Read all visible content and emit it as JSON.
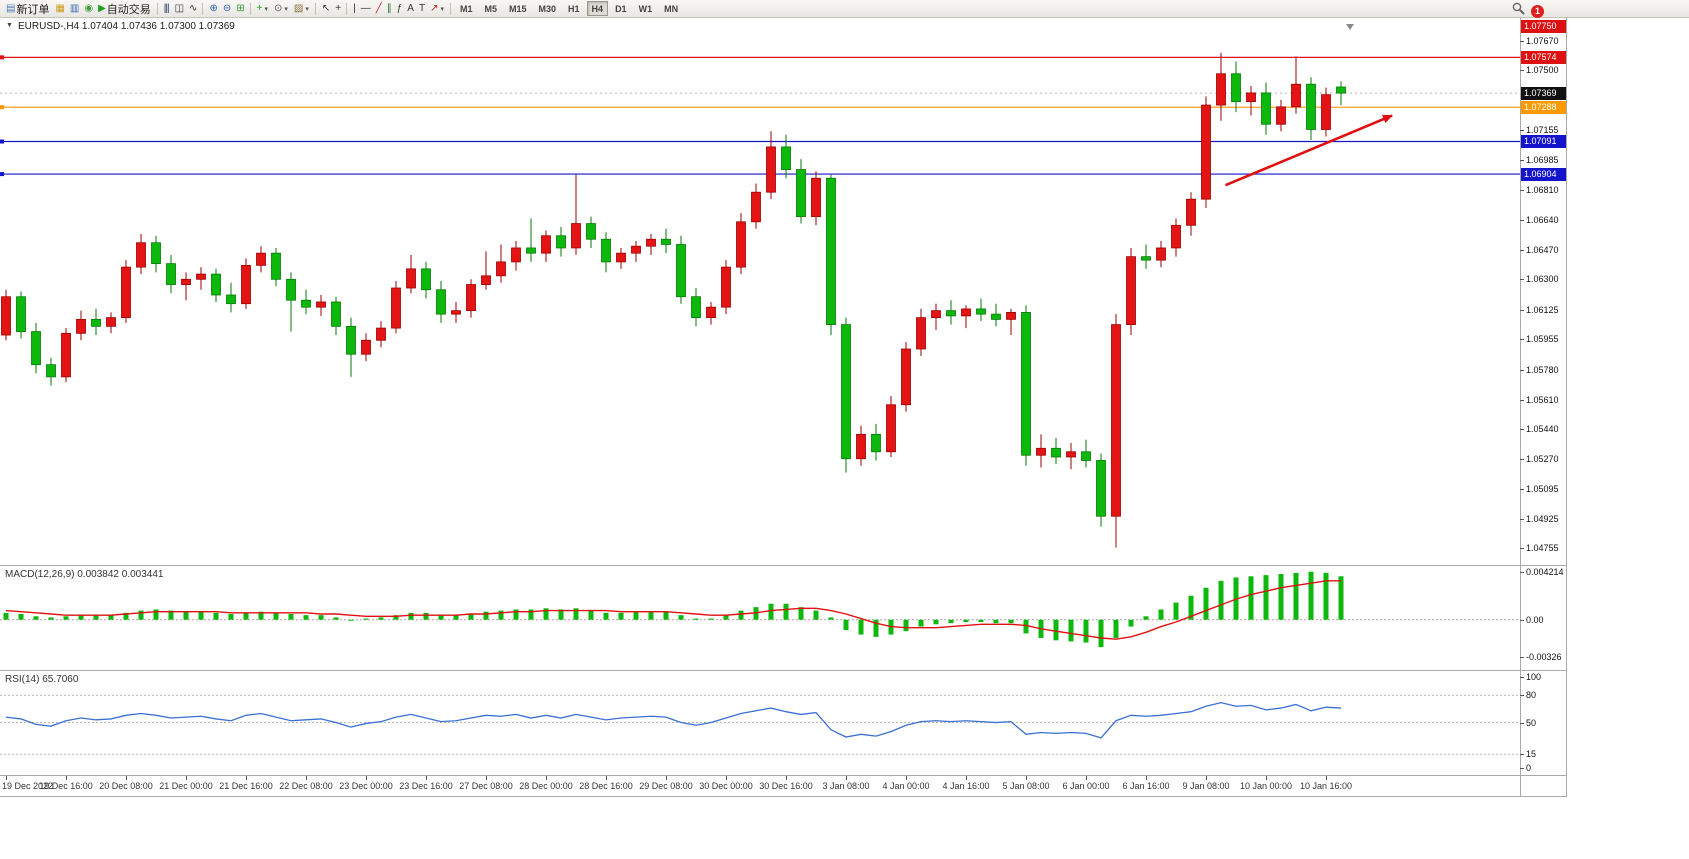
{
  "toolbar": {
    "notification_count": "1",
    "active_timeframe": "H4",
    "timeframes": [
      "M1",
      "M5",
      "M15",
      "M30",
      "H1",
      "H4",
      "D1",
      "W1",
      "MN"
    ],
    "icons": [
      {
        "name": "new-order-button",
        "glyph": "▤",
        "color": "#4a7ab5",
        "label": "新订单"
      },
      {
        "name": "new-chart-button",
        "glyph": "▦",
        "color": "#c99a1a"
      },
      {
        "name": "market-watch-button",
        "glyph": "▥",
        "color": "#2f66b3"
      },
      {
        "name": "navigator-button",
        "glyph": "◉",
        "color": "#3f9e3f"
      },
      {
        "name": "autotrading-button",
        "glyph": "▶",
        "color": "#18a018",
        "label": "自动交易"
      },
      {
        "name": "separator"
      },
      {
        "name": "bar-chart-button",
        "glyph": "|||",
        "color": "#223a6b"
      },
      {
        "name": "candlestick-chart-button",
        "glyph": "◫",
        "color": "#333333"
      },
      {
        "name": "line-chart-button",
        "glyph": "∿",
        "color": "#333333"
      },
      {
        "name": "separator"
      },
      {
        "name": "zoom-in-button",
        "glyph": "⊕",
        "color": "#2f66b3"
      },
      {
        "name": "zoom-out-button",
        "glyph": "⊖",
        "color": "#2f66b3"
      },
      {
        "name": "tile-windows-button",
        "glyph": "⊞",
        "color": "#3f9e3f"
      },
      {
        "name": "separator"
      },
      {
        "name": "indicators-button",
        "glyph": "+",
        "color": "#18a018",
        "caret": true
      },
      {
        "name": "periods-button",
        "glyph": "⊙",
        "color": "#555555",
        "caret": true
      },
      {
        "name": "templates-button",
        "glyph": "▨",
        "color": "#8a6d3b",
        "caret": true
      },
      {
        "name": "separator"
      },
      {
        "name": "cursor-button",
        "glyph": "↖",
        "color": "#333333"
      },
      {
        "name": "crosshair-button",
        "glyph": "+",
        "color": "#333333"
      },
      {
        "name": "separator"
      },
      {
        "name": "vertical-line-button",
        "glyph": "|",
        "color": "#333333"
      },
      {
        "name": "horizontal-line-button",
        "glyph": "—",
        "color": "#333333"
      },
      {
        "name": "trendline-button",
        "glyph": "╱",
        "color": "#c22222"
      },
      {
        "name": "channel-button",
        "glyph": "∥",
        "color": "#337733"
      },
      {
        "name": "fibonacci-button",
        "glyph": "ƒ",
        "color": "#333333"
      },
      {
        "name": "text-button",
        "glyph": "A",
        "color": "#333333"
      },
      {
        "name": "text-label-button",
        "glyph": "T",
        "color": "#333333"
      },
      {
        "name": "shapes-button",
        "glyph": "↗",
        "color": "#c22222",
        "caret": true
      },
      {
        "name": "separator"
      }
    ]
  },
  "chart_data": {
    "type": "candlestick",
    "symbol": "EURUSD-,H4",
    "title": "EURUSD-,H4 1.07404 1.07436 1.07300 1.07369",
    "ohlc_current": [
      1.07404,
      1.07436,
      1.073,
      1.07369
    ],
    "ylim": [
      1.0466,
      1.078
    ],
    "up_color": "#e51414",
    "down_color": "#0db80d",
    "price_axis_ticks": [
      1.0767,
      1.075,
      1.07155,
      1.06985,
      1.0681,
      1.0664,
      1.0647,
      1.063,
      1.06125,
      1.05955,
      1.0578,
      1.0561,
      1.0544,
      1.0527,
      1.05095,
      1.04925,
      1.04755
    ],
    "top_badge": {
      "label": "1.07750",
      "color": "#dd1111"
    },
    "current_price": {
      "price": 1.07369,
      "label": "1.07369",
      "color": "#111111"
    },
    "hlines": [
      {
        "price": 1.07574,
        "label": "1.07574",
        "color": "#dd1111"
      },
      {
        "price": 1.07288,
        "label": "1.07288",
        "color": "#ff9900"
      },
      {
        "price": 1.07091,
        "label": "1.07091",
        "color": "#1414cc"
      },
      {
        "price": 1.06904,
        "label": "1.06904",
        "color": "#1414cc"
      }
    ],
    "arrow": {
      "from_index": 81.3,
      "from_price": 1.0684,
      "to_index": 92.4,
      "to_price": 1.0724,
      "color": "#e01010"
    },
    "candles_ohlc": [
      [
        1.0598,
        1.0624,
        1.0595,
        1.062
      ],
      [
        1.062,
        1.0623,
        1.0596,
        1.06
      ],
      [
        1.06,
        1.0605,
        1.0576,
        1.0581
      ],
      [
        1.0581,
        1.0585,
        1.0569,
        1.0574
      ],
      [
        1.0574,
        1.0602,
        1.0571,
        1.0599
      ],
      [
        1.0599,
        1.0612,
        1.0595,
        1.0607
      ],
      [
        1.0607,
        1.0613,
        1.0598,
        1.0603
      ],
      [
        1.0603,
        1.0611,
        1.0599,
        1.0608
      ],
      [
        1.0608,
        1.0641,
        1.0605,
        1.0637
      ],
      [
        1.0637,
        1.0656,
        1.0633,
        1.0651
      ],
      [
        1.0651,
        1.0655,
        1.0634,
        1.0639
      ],
      [
        1.0639,
        1.0644,
        1.0622,
        1.0627
      ],
      [
        1.0627,
        1.0634,
        1.0618,
        1.063
      ],
      [
        1.063,
        1.0637,
        1.0624,
        1.0633
      ],
      [
        1.0633,
        1.0636,
        1.0617,
        1.0621
      ],
      [
        1.0621,
        1.0628,
        1.0611,
        1.0616
      ],
      [
        1.0616,
        1.0642,
        1.0613,
        1.0638
      ],
      [
        1.0638,
        1.0649,
        1.0634,
        1.0645
      ],
      [
        1.0645,
        1.0648,
        1.0626,
        1.063
      ],
      [
        1.063,
        1.0634,
        1.06,
        1.0618
      ],
      [
        1.0618,
        1.0624,
        1.061,
        1.0614
      ],
      [
        1.0614,
        1.0621,
        1.0609,
        1.0617
      ],
      [
        1.0617,
        1.062,
        1.0598,
        1.0603
      ],
      [
        1.0603,
        1.0608,
        1.0574,
        1.0587
      ],
      [
        1.0587,
        1.0599,
        1.0583,
        1.0595
      ],
      [
        1.0595,
        1.0606,
        1.0591,
        1.0602
      ],
      [
        1.0602,
        1.0629,
        1.0599,
        1.0625
      ],
      [
        1.0625,
        1.0644,
        1.0622,
        1.0636
      ],
      [
        1.0636,
        1.064,
        1.0619,
        1.0624
      ],
      [
        1.0624,
        1.0629,
        1.0605,
        1.061
      ],
      [
        1.061,
        1.0617,
        1.0605,
        1.0612
      ],
      [
        1.0612,
        1.063,
        1.0608,
        1.0627
      ],
      [
        1.0627,
        1.0646,
        1.0624,
        1.0632
      ],
      [
        1.0632,
        1.065,
        1.0628,
        1.064
      ],
      [
        1.064,
        1.0652,
        1.0635,
        1.0648
      ],
      [
        1.0648,
        1.0665,
        1.064,
        1.0645
      ],
      [
        1.0645,
        1.0658,
        1.064,
        1.0655
      ],
      [
        1.0655,
        1.066,
        1.0643,
        1.0648
      ],
      [
        1.0648,
        1.069,
        1.0644,
        1.0662
      ],
      [
        1.0662,
        1.0666,
        1.0648,
        1.0653
      ],
      [
        1.0653,
        1.0657,
        1.0634,
        1.064
      ],
      [
        1.064,
        1.0648,
        1.0636,
        1.0645
      ],
      [
        1.0645,
        1.0652,
        1.064,
        1.0649
      ],
      [
        1.0649,
        1.0656,
        1.0644,
        1.0653
      ],
      [
        1.0653,
        1.0659,
        1.0645,
        1.065
      ],
      [
        1.065,
        1.0655,
        1.0616,
        1.062
      ],
      [
        1.062,
        1.0625,
        1.0603,
        1.0608
      ],
      [
        1.0608,
        1.0617,
        1.0604,
        1.0614
      ],
      [
        1.0614,
        1.0641,
        1.061,
        1.0637
      ],
      [
        1.0637,
        1.0668,
        1.0633,
        1.0663
      ],
      [
        1.0663,
        1.0685,
        1.0659,
        1.068
      ],
      [
        1.068,
        1.0715,
        1.0676,
        1.0706
      ],
      [
        1.0706,
        1.0713,
        1.0688,
        1.0693
      ],
      [
        1.0693,
        1.0699,
        1.0662,
        1.0666
      ],
      [
        1.0666,
        1.0692,
        1.0661,
        1.0688
      ],
      [
        1.0688,
        1.069,
        1.0598,
        1.0604
      ],
      [
        1.0604,
        1.0608,
        1.0519,
        1.0527
      ],
      [
        1.0527,
        1.0546,
        1.0523,
        1.0541
      ],
      [
        1.0541,
        1.0547,
        1.0526,
        1.0531
      ],
      [
        1.0531,
        1.0563,
        1.0528,
        1.0558
      ],
      [
        1.0558,
        1.0594,
        1.0554,
        1.059
      ],
      [
        1.059,
        1.0613,
        1.0586,
        1.0608
      ],
      [
        1.0608,
        1.0616,
        1.0601,
        1.0612
      ],
      [
        1.0612,
        1.0618,
        1.0604,
        1.0609
      ],
      [
        1.0609,
        1.0615,
        1.0602,
        1.0613
      ],
      [
        1.0613,
        1.0619,
        1.0606,
        1.061
      ],
      [
        1.061,
        1.0616,
        1.0603,
        1.0607
      ],
      [
        1.0607,
        1.0613,
        1.0598,
        1.0611
      ],
      [
        1.0611,
        1.0615,
        1.0523,
        1.0529
      ],
      [
        1.0529,
        1.0541,
        1.0522,
        1.0533
      ],
      [
        1.0533,
        1.0539,
        1.0524,
        1.0528
      ],
      [
        1.0528,
        1.0536,
        1.0521,
        1.0531
      ],
      [
        1.0531,
        1.0538,
        1.0522,
        1.0526
      ],
      [
        1.0526,
        1.053,
        1.0488,
        1.0494
      ],
      [
        1.0494,
        1.061,
        1.0476,
        1.0604
      ],
      [
        1.0604,
        1.0648,
        1.0598,
        1.0643
      ],
      [
        1.0643,
        1.065,
        1.0636,
        1.0641
      ],
      [
        1.0641,
        1.0652,
        1.0637,
        1.0648
      ],
      [
        1.0648,
        1.0665,
        1.0643,
        1.0661
      ],
      [
        1.0661,
        1.068,
        1.0655,
        1.0676
      ],
      [
        1.0676,
        1.0735,
        1.0671,
        1.073
      ],
      [
        1.073,
        1.076,
        1.0721,
        1.0748
      ],
      [
        1.0748,
        1.0755,
        1.0726,
        1.0732
      ],
      [
        1.0732,
        1.0741,
        1.0724,
        1.0737
      ],
      [
        1.0737,
        1.0743,
        1.0713,
        1.0719
      ],
      [
        1.0719,
        1.0733,
        1.0715,
        1.0729
      ],
      [
        1.0729,
        1.0758,
        1.0725,
        1.0742
      ],
      [
        1.0742,
        1.0746,
        1.071,
        1.0716
      ],
      [
        1.0716,
        1.074,
        1.0712,
        1.0736
      ],
      [
        1.07404,
        1.07436,
        1.073,
        1.07369
      ]
    ],
    "macd": {
      "type": "bar+line",
      "label": "MACD(12,26,9) 0.003842 0.003441",
      "ylim": [
        -0.0044,
        0.0047
      ],
      "hist_color": "#0db80d",
      "signal_color": "#e01010",
      "axis_ticks": [
        {
          "v": 0.004214,
          "t": "0.004214"
        },
        {
          "v": 0,
          "t": "0.00"
        },
        {
          "v": -0.00326,
          "t": "-0.00326"
        }
      ],
      "histogram": [
        0.0006,
        0.0005,
        0.0003,
        0.0002,
        0.0003,
        0.0004,
        0.0004,
        0.0004,
        0.0006,
        0.0008,
        0.0009,
        0.0008,
        0.0007,
        0.0007,
        0.0006,
        0.0005,
        0.0006,
        0.0007,
        0.0006,
        0.0005,
        0.0004,
        0.0004,
        0.0002,
        0.0,
        0.0001,
        0.0002,
        0.0004,
        0.0006,
        0.0006,
        0.0004,
        0.0004,
        0.0005,
        0.0007,
        0.0008,
        0.0009,
        0.0009,
        0.001,
        0.0009,
        0.001,
        0.0008,
        0.0006,
        0.0006,
        0.0007,
        0.0007,
        0.0007,
        0.0004,
        0.0001,
        0.0001,
        0.0004,
        0.0008,
        0.0011,
        0.0014,
        0.0014,
        0.0011,
        0.0008,
        0.0002,
        -0.0009,
        -0.0013,
        -0.0015,
        -0.0013,
        -0.001,
        -0.0006,
        -0.0004,
        -0.0003,
        -0.0002,
        -0.0002,
        -0.0003,
        -0.0003,
        -0.0012,
        -0.0016,
        -0.0018,
        -0.0019,
        -0.002,
        -0.0024,
        -0.0016,
        -0.0006,
        0.0003,
        0.0009,
        0.0015,
        0.0021,
        0.0028,
        0.0034,
        0.0037,
        0.0038,
        0.0039,
        0.004,
        0.0041,
        0.0042,
        0.0041,
        0.0038
      ],
      "signal": [
        0.0008,
        0.0007,
        0.0006,
        0.0005,
        0.0004,
        0.0004,
        0.0004,
        0.0004,
        0.0005,
        0.0006,
        0.0007,
        0.0007,
        0.0007,
        0.0007,
        0.0007,
        0.0006,
        0.0006,
        0.0006,
        0.0006,
        0.0006,
        0.0006,
        0.0005,
        0.0005,
        0.0004,
        0.0003,
        0.0003,
        0.0003,
        0.0004,
        0.0004,
        0.0004,
        0.0004,
        0.0005,
        0.0005,
        0.0006,
        0.0007,
        0.0007,
        0.0008,
        0.0008,
        0.0008,
        0.0008,
        0.0008,
        0.0007,
        0.0007,
        0.0007,
        0.0007,
        0.0006,
        0.0005,
        0.0004,
        0.0004,
        0.0005,
        0.0006,
        0.0008,
        0.0009,
        0.001,
        0.001,
        0.0008,
        0.0005,
        0.0001,
        -0.0003,
        -0.0006,
        -0.0007,
        -0.0007,
        -0.0007,
        -0.0006,
        -0.0005,
        -0.0004,
        -0.0004,
        -0.0004,
        -0.0005,
        -0.0008,
        -0.001,
        -0.0012,
        -0.0014,
        -0.0016,
        -0.0017,
        -0.0015,
        -0.0011,
        -0.0006,
        -0.0002,
        0.0003,
        0.0008,
        0.0013,
        0.0018,
        0.0022,
        0.0025,
        0.0028,
        0.003,
        0.0032,
        0.0034,
        0.0034
      ]
    },
    "rsi": {
      "type": "line",
      "label": "RSI(14) 65.7060",
      "ylim": [
        -8,
        107
      ],
      "line_color": "#3b6fd4",
      "levels": [
        80,
        50,
        15
      ],
      "axis_ticks": [
        {
          "v": 100,
          "t": "100"
        },
        {
          "v": 80,
          "t": "80"
        },
        {
          "v": 50,
          "t": "50"
        },
        {
          "v": 15,
          "t": "15"
        },
        {
          "v": 0,
          "t": "0"
        }
      ],
      "values": [
        56,
        54,
        48,
        46,
        52,
        55,
        53,
        54,
        58,
        60,
        58,
        55,
        56,
        57,
        54,
        52,
        58,
        60,
        56,
        52,
        53,
        54,
        50,
        45,
        49,
        51,
        56,
        59,
        55,
        51,
        52,
        55,
        58,
        57,
        59,
        55,
        58,
        55,
        59,
        56,
        53,
        55,
        56,
        57,
        56,
        50,
        47,
        50,
        55,
        60,
        63,
        66,
        62,
        59,
        61,
        42,
        34,
        37,
        35,
        40,
        47,
        51,
        52,
        51,
        52,
        51,
        50,
        51,
        37,
        39,
        38,
        39,
        38,
        33,
        52,
        58,
        57,
        58,
        60,
        62,
        68,
        72,
        68,
        69,
        64,
        66,
        70,
        63,
        67,
        66
      ]
    },
    "time_labels": [
      {
        "i": 0,
        "t": "19 Dec 2022"
      },
      {
        "i": 4,
        "t": "19 Dec 16:00"
      },
      {
        "i": 8,
        "t": "20 Dec 08:00"
      },
      {
        "i": 12,
        "t": "21 Dec 00:00"
      },
      {
        "i": 16,
        "t": "21 Dec 16:00"
      },
      {
        "i": 20,
        "t": "22 Dec 08:00"
      },
      {
        "i": 24,
        "t": "23 Dec 00:00"
      },
      {
        "i": 28,
        "t": "23 Dec 16:00"
      },
      {
        "i": 32,
        "t": "27 Dec 08:00"
      },
      {
        "i": 36,
        "t": "28 Dec 00:00"
      },
      {
        "i": 40,
        "t": "28 Dec 16:00"
      },
      {
        "i": 44,
        "t": "29 Dec 08:00"
      },
      {
        "i": 48,
        "t": "30 Dec 00:00"
      },
      {
        "i": 52,
        "t": "30 Dec 16:00"
      },
      {
        "i": 56,
        "t": "3 Jan 08:00"
      },
      {
        "i": 60,
        "t": "4 Jan 00:00"
      },
      {
        "i": 64,
        "t": "4 Jan 16:00"
      },
      {
        "i": 68,
        "t": "5 Jan 08:00"
      },
      {
        "i": 72,
        "t": "6 Jan 00:00"
      },
      {
        "i": 76,
        "t": "6 Jan 16:00"
      },
      {
        "i": 80,
        "t": "9 Jan 08:00"
      },
      {
        "i": 84,
        "t": "10 Jan 00:00"
      },
      {
        "i": 88,
        "t": "10 Jan 16:00"
      }
    ]
  }
}
